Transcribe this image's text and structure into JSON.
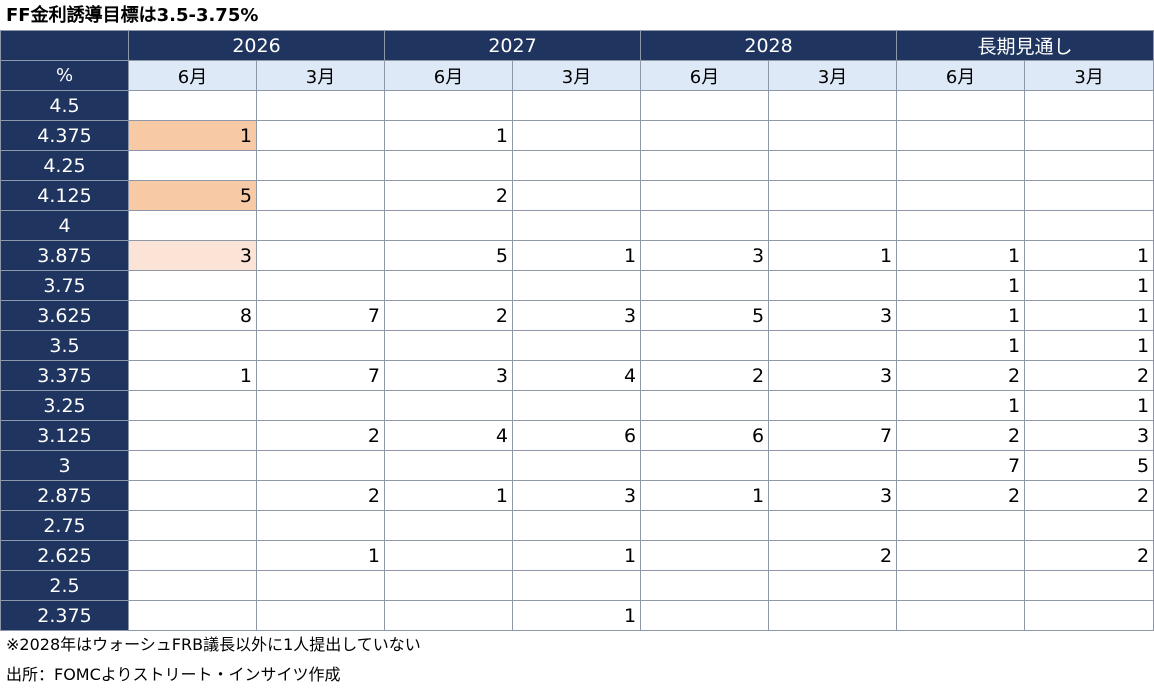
{
  "title": "FF金利誘導目標は3.5-3.75%",
  "corner_label": "%",
  "periods": [
    {
      "label": "2026",
      "months": [
        "6月",
        "3月"
      ]
    },
    {
      "label": "2027",
      "months": [
        "6月",
        "3月"
      ]
    },
    {
      "label": "2028",
      "months": [
        "6月",
        "3月"
      ]
    },
    {
      "label": "長期見通し",
      "months": [
        "6月",
        "3月"
      ]
    }
  ],
  "chart_data": {
    "type": "table",
    "title": "FF金利誘導目標は3.5-3.75%",
    "row_header": "%",
    "columns": [
      "2026 6月",
      "2026 3月",
      "2027 6月",
      "2027 3月",
      "2028 6月",
      "2028 3月",
      "長期見通し 6月",
      "長期見通し 3月"
    ],
    "rows": [
      {
        "rate": "4.5",
        "values": [
          "",
          "",
          "",
          "",
          "",
          "",
          "",
          ""
        ]
      },
      {
        "rate": "4.375",
        "values": [
          "1",
          "",
          "1",
          "",
          "",
          "",
          "",
          ""
        ]
      },
      {
        "rate": "4.25",
        "values": [
          "",
          "",
          "",
          "",
          "",
          "",
          "",
          ""
        ]
      },
      {
        "rate": "4.125",
        "values": [
          "5",
          "",
          "2",
          "",
          "",
          "",
          "",
          ""
        ]
      },
      {
        "rate": "4",
        "values": [
          "",
          "",
          "",
          "",
          "",
          "",
          "",
          ""
        ]
      },
      {
        "rate": "3.875",
        "values": [
          "3",
          "",
          "5",
          "1",
          "3",
          "1",
          "1",
          "1"
        ]
      },
      {
        "rate": "3.75",
        "values": [
          "",
          "",
          "",
          "",
          "",
          "",
          "1",
          "1"
        ]
      },
      {
        "rate": "3.625",
        "values": [
          "8",
          "7",
          "2",
          "3",
          "5",
          "3",
          "1",
          "1"
        ]
      },
      {
        "rate": "3.5",
        "values": [
          "",
          "",
          "",
          "",
          "",
          "",
          "1",
          "1"
        ]
      },
      {
        "rate": "3.375",
        "values": [
          "1",
          "7",
          "3",
          "4",
          "2",
          "3",
          "2",
          "2"
        ]
      },
      {
        "rate": "3.25",
        "values": [
          "",
          "",
          "",
          "",
          "",
          "",
          "1",
          "1"
        ]
      },
      {
        "rate": "3.125",
        "values": [
          "",
          "2",
          "4",
          "6",
          "6",
          "7",
          "2",
          "3"
        ]
      },
      {
        "rate": "3",
        "values": [
          "",
          "",
          "",
          "",
          "",
          "",
          "7",
          "5"
        ]
      },
      {
        "rate": "2.875",
        "values": [
          "",
          "2",
          "1",
          "3",
          "1",
          "3",
          "2",
          "2"
        ]
      },
      {
        "rate": "2.75",
        "values": [
          "",
          "",
          "",
          "",
          "",
          "",
          "",
          ""
        ]
      },
      {
        "rate": "2.625",
        "values": [
          "",
          "1",
          "",
          "1",
          "",
          "2",
          "",
          "2"
        ]
      },
      {
        "rate": "2.5",
        "values": [
          "",
          "",
          "",
          "",
          "",
          "",
          "",
          ""
        ]
      },
      {
        "rate": "2.375",
        "values": [
          "",
          "",
          "",
          "1",
          "",
          "",
          "",
          ""
        ]
      }
    ],
    "highlights": [
      {
        "row": 1,
        "col": 0,
        "color": "#f7c9a4"
      },
      {
        "row": 3,
        "col": 0,
        "color": "#f7c9a4"
      },
      {
        "row": 5,
        "col": 0,
        "color": "#fbe4d5"
      }
    ]
  },
  "notes": [
    "※2028年はウォーシュFRB議長以外に1人提出していない",
    "出所：FOMCよりストリート・インサイツ作成"
  ],
  "colors": {
    "header_bg": "#1f3560",
    "month_bg": "#dde9f6",
    "highlight_strong": "#f7c9a4",
    "highlight_light": "#fbe4d5"
  }
}
